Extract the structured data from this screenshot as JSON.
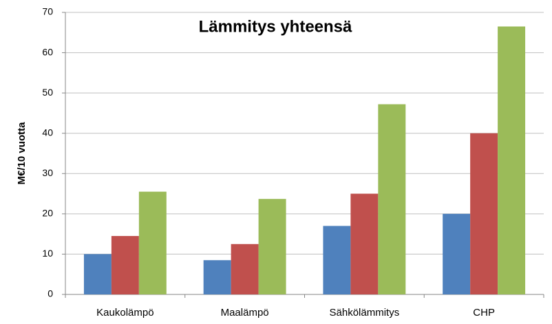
{
  "chart_data": {
    "type": "bar",
    "title": "Lämmitys yhteensä",
    "y_label": "M€/10 vuotta",
    "categories": [
      "Kaukolämpö",
      "Maalämpö",
      "Sähkölämmitys",
      "CHP"
    ],
    "series": [
      {
        "color": "#4f81bd",
        "values": [
          10,
          8.5,
          17,
          20
        ]
      },
      {
        "color": "#c0504d",
        "values": [
          14.5,
          12.5,
          25,
          40
        ]
      },
      {
        "color": "#9bbb59",
        "values": [
          25.5,
          23.7,
          47.2,
          66.5
        ]
      }
    ],
    "ylim": [
      0,
      70
    ],
    "yticks": [
      0,
      10,
      20,
      30,
      40,
      50,
      60,
      70
    ],
    "grid": true,
    "legend": false
  }
}
